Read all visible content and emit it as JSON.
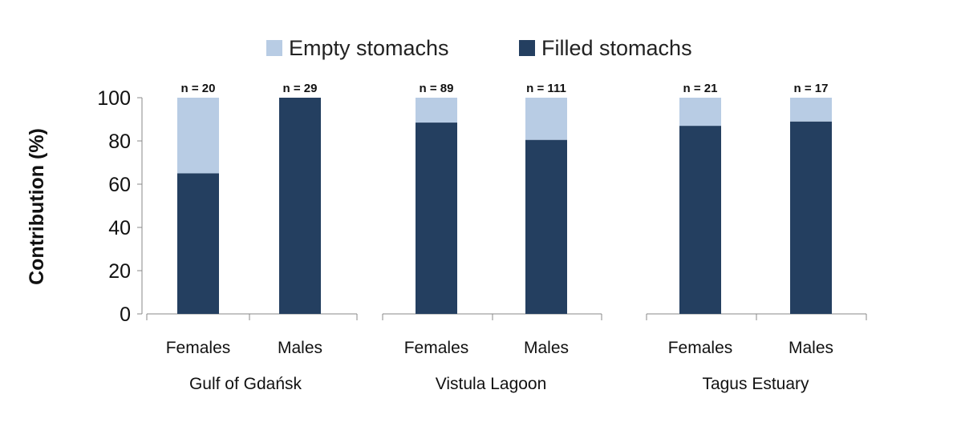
{
  "chart_data": {
    "type": "bar",
    "stacked": true,
    "title": "",
    "ylabel": "Contribution (%)",
    "ylim": [
      0,
      100
    ],
    "yticks": [
      0,
      20,
      40,
      60,
      80,
      100
    ],
    "grid": false,
    "legend": {
      "placement": "top",
      "entries": [
        {
          "name": "Empty stomachs",
          "color": "#b8cce4"
        },
        {
          "name": "Filled stomachs",
          "color": "#243f60"
        }
      ]
    },
    "groups": [
      {
        "name": "Gulf of Gdańsk",
        "categories": [
          "Females",
          "Males"
        ],
        "n_labels": [
          "n = 20",
          "n = 29"
        ],
        "series": [
          {
            "name": "Filled stomachs",
            "values": [
              65,
              100
            ]
          },
          {
            "name": "Empty stomachs",
            "values": [
              35,
              0
            ]
          }
        ]
      },
      {
        "name": "Vistula Lagoon",
        "categories": [
          "Females",
          "Males"
        ],
        "n_labels": [
          "n = 89",
          "n = 111"
        ],
        "series": [
          {
            "name": "Filled stomachs",
            "values": [
              88.5,
              80.5
            ]
          },
          {
            "name": "Empty stomachs",
            "values": [
              11.5,
              19.5
            ]
          }
        ]
      },
      {
        "name": "Tagus Estuary",
        "categories": [
          "Females",
          "Males"
        ],
        "n_labels": [
          "n = 21",
          "n = 17"
        ],
        "series": [
          {
            "name": "Filled stomachs",
            "values": [
              87,
              89
            ]
          },
          {
            "name": "Empty stomachs",
            "values": [
              13,
              11
            ]
          }
        ]
      }
    ]
  }
}
